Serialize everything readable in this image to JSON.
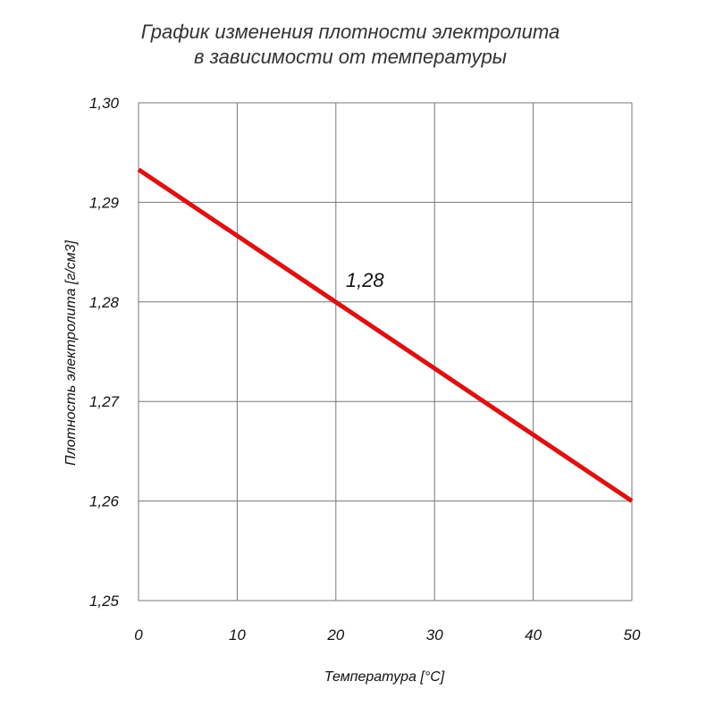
{
  "chart_data": {
    "type": "line",
    "title_lines": [
      "График изменения плотности электролита",
      "в зависимости от температуры"
    ],
    "xlabel": "Температура [°C]",
    "ylabel": "Плотность электролита [г/см3]",
    "xlim": [
      0,
      50
    ],
    "ylim": [
      1.25,
      1.3
    ],
    "x_ticks": [
      0,
      10,
      20,
      30,
      40,
      50
    ],
    "x_tick_labels": [
      "0",
      "10",
      "20",
      "30",
      "40",
      "50"
    ],
    "y_ticks": [
      1.25,
      1.26,
      1.27,
      1.28,
      1.29,
      1.3
    ],
    "y_tick_labels": [
      "1,25",
      "1,26",
      "1,27",
      "1,28",
      "1,29",
      "1,30"
    ],
    "grid": true,
    "series": [
      {
        "x": [
          0,
          50
        ],
        "y": [
          1.2933,
          1.26
        ],
        "color": "#e01010"
      }
    ],
    "annotations": [
      {
        "text": "1,28",
        "x": 21,
        "y": 1.2815
      }
    ]
  }
}
